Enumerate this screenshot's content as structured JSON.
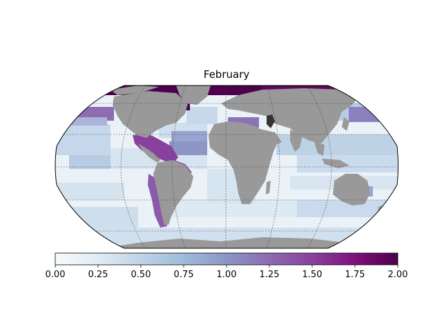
{
  "title": "February",
  "colorbar": {
    "min": 0.0,
    "max": 2.0,
    "ticks": [
      "0.00",
      "0.25",
      "0.50",
      "0.75",
      "1.00",
      "1.25",
      "1.50",
      "1.75",
      "2.00"
    ],
    "colors": [
      "#f7fcfd",
      "#e0ecf4",
      "#bfd3e6",
      "#9ebcda",
      "#8c96c6",
      "#8c6bb1",
      "#88419d",
      "#810f7c",
      "#4d004b"
    ]
  },
  "colors": {
    "land": "#999999",
    "ocean_low": "#eaf2f8",
    "ocean_mid": "#b7cce3",
    "graticule": "#444444"
  }
}
